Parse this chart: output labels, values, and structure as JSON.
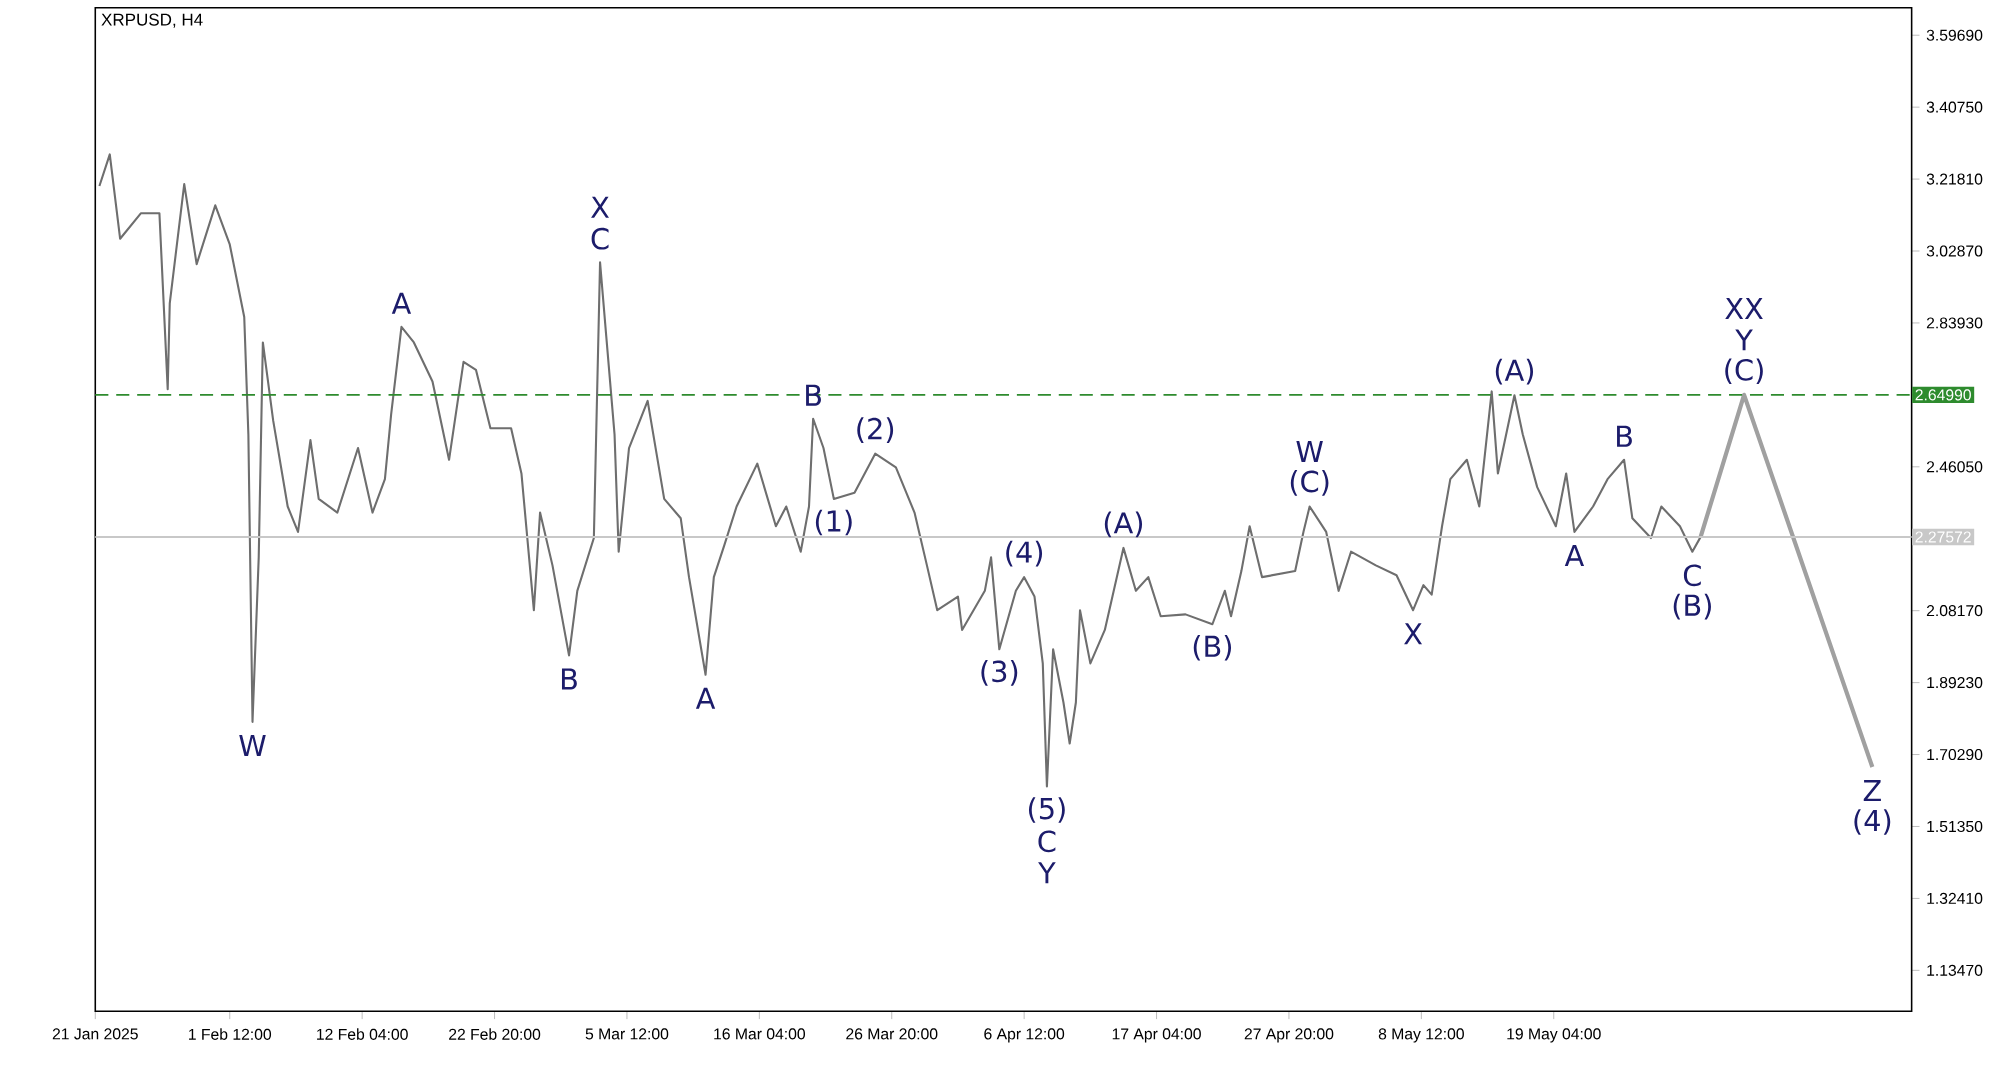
{
  "chart_data": {
    "type": "line",
    "title": "XRPUSD, H4",
    "xlim": [
      "2025-01-21T16:00",
      "2025-06-17T00:00"
    ],
    "xticks": [
      {
        "value": "2025-01-21T16:00",
        "label": "21 Jan 2025"
      },
      {
        "value": "2025-02-01T12:00",
        "label": "1 Feb 12:00"
      },
      {
        "value": "2025-02-12T04:00",
        "label": "12 Feb 04:00"
      },
      {
        "value": "2025-02-22T20:00",
        "label": "22 Feb 20:00"
      },
      {
        "value": "2025-03-05T12:00",
        "label": "5 Mar 12:00"
      },
      {
        "value": "2025-03-16T04:00",
        "label": "16 Mar 04:00"
      },
      {
        "value": "2025-03-26T20:00",
        "label": "26 Mar 20:00"
      },
      {
        "value": "2025-04-06T12:00",
        "label": "6 Apr 12:00"
      },
      {
        "value": "2025-04-17T04:00",
        "label": "17 Apr 04:00"
      },
      {
        "value": "2025-04-27T20:00",
        "label": "27 Apr 20:00"
      },
      {
        "value": "2025-05-08T12:00",
        "label": "8 May 12:00"
      },
      {
        "value": "2025-05-19T04:00",
        "label": "19 May 04:00"
      }
    ],
    "ylim": [
      1.027,
      3.669
    ],
    "yticks": [
      {
        "value": 1.1347,
        "label": "1.13470"
      },
      {
        "value": 1.3241,
        "label": "1.32410"
      },
      {
        "value": 1.5135,
        "label": "1.51350"
      },
      {
        "value": 1.7029,
        "label": "1.70290"
      },
      {
        "value": 1.8923,
        "label": "1.89230"
      },
      {
        "value": 2.0817,
        "label": "2.08170"
      },
      {
        "value": 2.2711,
        "label": null
      },
      {
        "value": 2.4605,
        "label": "2.46050"
      },
      {
        "value": 2.6499,
        "label": null
      },
      {
        "value": 2.8393,
        "label": "2.83930"
      },
      {
        "value": 3.0287,
        "label": "3.02870"
      },
      {
        "value": 3.2181,
        "label": "3.21810"
      },
      {
        "value": 3.4075,
        "label": "3.40750"
      },
      {
        "value": 3.5969,
        "label": "3.59690"
      }
    ],
    "ref_lines": [
      {
        "axis": "y",
        "value": 2.6499,
        "label": "2.64990",
        "color": "#2e8b2e",
        "line_style": "dashed"
      },
      {
        "axis": "y",
        "value": 2.27572,
        "label": "2.27572",
        "color": "#c8c8c8",
        "line_style": "solid"
      }
    ],
    "series": [
      {
        "color": "#6e6e6e",
        "x": [
          "2025-01-22T00:00",
          "2025-01-22T20:00",
          "2025-01-23T16:00",
          "2025-01-25T08:00",
          "2025-01-26T20:00",
          "2025-01-27T12:00",
          "2025-01-27T16:00",
          "2025-01-28T20:00",
          "2025-01-29T20:00",
          "2025-01-31T08:00",
          "2025-02-01T12:00",
          "2025-02-02T16:00",
          "2025-02-03T00:00",
          "2025-02-03T08:00",
          "2025-02-03T20:00",
          "2025-02-04T04:00",
          "2025-02-05T00:00",
          "2025-02-06T04:00",
          "2025-02-07T00:00",
          "2025-02-08T00:00",
          "2025-02-08T16:00",
          "2025-02-10T04:00",
          "2025-02-11T20:00",
          "2025-02-13T00:00",
          "2025-02-14T00:00",
          "2025-02-14T12:00",
          "2025-02-15T08:00",
          "2025-02-16T08:00",
          "2025-02-17T20:00",
          "2025-02-19T04:00",
          "2025-02-20T08:00",
          "2025-02-21T08:00",
          "2025-02-22T12:00",
          "2025-02-24T04:00",
          "2025-02-25T00:00",
          "2025-02-26T00:00",
          "2025-02-26T12:00",
          "2025-02-27T12:00",
          "2025-02-28T20:00",
          "2025-03-01T12:00",
          "2025-03-02T20:00",
          "2025-03-03T08:00",
          "2025-03-03T20:00",
          "2025-03-04T12:00",
          "2025-03-04T20:00",
          "2025-03-05T16:00",
          "2025-03-07T04:00",
          "2025-03-08T12:00",
          "2025-03-09T20:00",
          "2025-03-10T12:00",
          "2025-03-11T20:00",
          "2025-03-12T12:00",
          "2025-03-13T08:00",
          "2025-03-14T08:00",
          "2025-03-16T00:00",
          "2025-03-17T12:00",
          "2025-03-18T08:00",
          "2025-03-19T12:00",
          "2025-03-20T04:00",
          "2025-03-20T12:00",
          "2025-03-21T08:00",
          "2025-03-22T04:00",
          "2025-03-23T20:00",
          "2025-03-25T12:00",
          "2025-03-27T04:00",
          "2025-03-28T16:00",
          "2025-03-29T16:00",
          "2025-03-30T12:00",
          "2025-04-01T04:00",
          "2025-04-01T12:00",
          "2025-04-03T08:00",
          "2025-04-03T20:00",
          "2025-04-04T12:00",
          "2025-04-05T20:00",
          "2025-04-06T12:00",
          "2025-04-07T08:00",
          "2025-04-08T00:00",
          "2025-04-08T08:00",
          "2025-04-08T20:00",
          "2025-04-09T16:00",
          "2025-04-10T04:00",
          "2025-04-10T16:00",
          "2025-04-11T00:00",
          "2025-04-11T20:00",
          "2025-04-13T00:00",
          "2025-04-14T12:00",
          "2025-04-15T12:00",
          "2025-04-16T12:00",
          "2025-04-17T12:00",
          "2025-04-19T12:00",
          "2025-04-21T16:00",
          "2025-04-22T16:00",
          "2025-04-23T04:00",
          "2025-04-24T00:00",
          "2025-04-24T16:00",
          "2025-04-25T16:00",
          "2025-04-28T08:00",
          "2025-04-29T00:00",
          "2025-04-29T12:00",
          "2025-04-30T20:00",
          "2025-05-01T20:00",
          "2025-05-02T20:00",
          "2025-05-04T20:00",
          "2025-05-06T12:00",
          "2025-05-07T20:00",
          "2025-05-08T16:00",
          "2025-05-09T08:00",
          "2025-05-10T04:00",
          "2025-05-10T20:00",
          "2025-05-12T04:00",
          "2025-05-13T04:00",
          "2025-05-14T04:00",
          "2025-05-14T16:00",
          "2025-05-16T00:00",
          "2025-05-16T16:00",
          "2025-05-17T20:00",
          "2025-05-19T08:00",
          "2025-05-20T04:00",
          "2025-05-20T20:00",
          "2025-05-22T08:00",
          "2025-05-23T12:00",
          "2025-05-24T20:00",
          "2025-05-25T12:00",
          "2025-05-27T00:00",
          "2025-05-27T20:00",
          "2025-05-29T08:00",
          "2025-05-30T08:00",
          "2025-05-31T00:00"
        ],
        "values": [
          3.2,
          3.283,
          3.061,
          3.128,
          3.128,
          2.665,
          2.891,
          3.205,
          2.994,
          3.149,
          3.046,
          2.855,
          2.546,
          1.789,
          2.222,
          2.788,
          2.582,
          2.356,
          2.289,
          2.531,
          2.376,
          2.34,
          2.51,
          2.34,
          2.428,
          2.598,
          2.829,
          2.788,
          2.685,
          2.479,
          2.737,
          2.716,
          2.562,
          2.562,
          2.443,
          2.083,
          2.34,
          2.201,
          1.964,
          2.134,
          2.273,
          2.999,
          2.804,
          2.546,
          2.237,
          2.51,
          2.634,
          2.376,
          2.325,
          2.17,
          1.913,
          2.17,
          2.253,
          2.356,
          2.469,
          2.304,
          2.356,
          2.237,
          2.356,
          2.587,
          2.51,
          2.376,
          2.392,
          2.495,
          2.459,
          2.34,
          2.201,
          2.083,
          2.119,
          2.031,
          2.134,
          2.222,
          1.98,
          2.134,
          2.17,
          2.119,
          1.943,
          1.619,
          1.98,
          1.84,
          1.732,
          1.84,
          2.083,
          1.943,
          2.031,
          2.247,
          2.134,
          2.17,
          2.067,
          2.072,
          2.046,
          2.134,
          2.067,
          2.186,
          2.304,
          2.17,
          2.186,
          2.289,
          2.356,
          2.289,
          2.134,
          2.237,
          2.201,
          2.175,
          2.083,
          2.149,
          2.124,
          2.304,
          2.428,
          2.479,
          2.356,
          2.659,
          2.443,
          2.649,
          2.546,
          2.407,
          2.304,
          2.443,
          2.289,
          2.356,
          2.428,
          2.479,
          2.325,
          2.273,
          2.356,
          2.304,
          2.237,
          2.276
        ]
      },
      {
        "color": "#a0a0a0",
        "x": [
          "2025-05-31T00:00",
          "2025-06-03T12:00",
          "2025-06-13T20:00"
        ],
        "values": [
          2.276,
          2.65,
          1.67
        ]
      }
    ],
    "annotations": [
      {
        "text": "W",
        "x": "2025-02-03T08:00",
        "y": 1.789
      },
      {
        "text": "C",
        "x": "2025-03-03T08:00",
        "y": 2.999
      },
      {
        "text": "X",
        "x": "2025-03-03T08:00",
        "y": 2.999
      },
      {
        "text": "A",
        "x": "2025-02-15T08:00",
        "y": 2.829
      },
      {
        "text": "B",
        "x": "2025-02-28T20:00",
        "y": 1.964
      },
      {
        "text": "A",
        "x": "2025-03-11T20:00",
        "y": 1.913
      },
      {
        "text": "B",
        "x": "2025-03-20T12:00",
        "y": 2.587
      },
      {
        "text": "(2)",
        "x": "2025-03-25T12:00",
        "y": 2.495
      },
      {
        "text": "(1)",
        "x": "2025-03-22T04:00",
        "y": 2.376
      },
      {
        "text": "(3)",
        "x": "2025-04-04T12:00",
        "y": 1.98
      },
      {
        "text": "(4)",
        "x": "2025-04-06T12:00",
        "y": 2.17
      },
      {
        "text": "(5)",
        "x": "2025-04-08T08:00",
        "y": 1.619
      },
      {
        "text": "C",
        "x": "2025-04-08T08:00",
        "y": 1.619
      },
      {
        "text": "Y",
        "x": "2025-04-08T08:00",
        "y": 1.619
      },
      {
        "text": "(A)",
        "x": "2025-04-14T12:00",
        "y": 2.247
      },
      {
        "text": "(B)",
        "x": "2025-04-21T16:00",
        "y": 2.046
      },
      {
        "text": "(C)",
        "x": "2025-04-29T12:00",
        "y": 2.356
      },
      {
        "text": "W",
        "x": "2025-04-29T12:00",
        "y": 2.356
      },
      {
        "text": "X",
        "x": "2025-05-07T20:00",
        "y": 2.083
      },
      {
        "text": "(A)",
        "x": "2025-05-16T00:00",
        "y": 2.649
      },
      {
        "text": "B",
        "x": "2025-05-24T20:00",
        "y": 2.479
      },
      {
        "text": "A",
        "x": "2025-05-20T20:00",
        "y": 2.289
      },
      {
        "text": "C",
        "x": "2025-05-30T08:00",
        "y": 2.237
      },
      {
        "text": "(B)",
        "x": "2025-05-30T08:00",
        "y": 2.237
      },
      {
        "text": "(C)",
        "x": "2025-06-03T12:00",
        "y": 2.65
      },
      {
        "text": "Y",
        "x": "2025-06-03T12:00",
        "y": 2.65
      },
      {
        "text": "XX",
        "x": "2025-06-03T12:00",
        "y": 2.65
      },
      {
        "text": "Z",
        "x": "2025-06-13T20:00",
        "y": 1.67
      },
      {
        "text": "(4)",
        "x": "2025-06-13T20:00",
        "y": 1.67
      }
    ]
  }
}
